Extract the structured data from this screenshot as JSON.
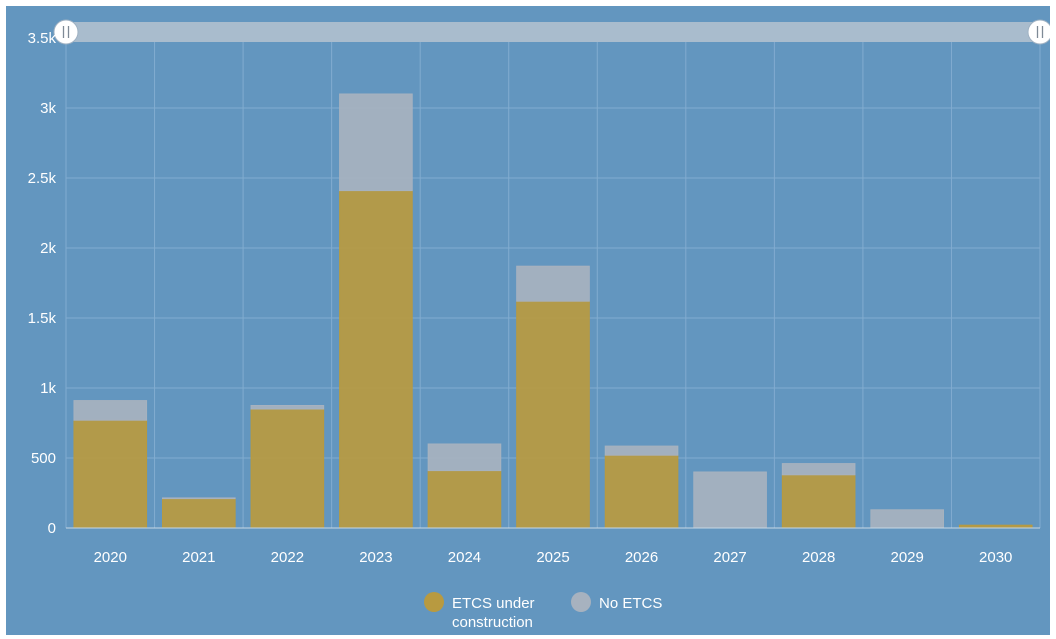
{
  "chart_data": {
    "type": "bar",
    "stacked": true,
    "categories": [
      "2020",
      "2021",
      "2022",
      "2023",
      "2024",
      "2025",
      "2026",
      "2027",
      "2028",
      "2029",
      "2030"
    ],
    "series": [
      {
        "name": "ETCS under construction",
        "color": "#b89a40",
        "values": [
          770,
          210,
          850,
          2410,
          410,
          1620,
          520,
          0,
          380,
          0,
          20
        ]
      },
      {
        "name": "No ETCS",
        "color": "#a7b2bf",
        "values": [
          140,
          5,
          25,
          690,
          190,
          250,
          65,
          400,
          80,
          130,
          0
        ]
      }
    ],
    "ylim": [
      0,
      3500
    ],
    "yticks": [
      0,
      500,
      1000,
      1500,
      2000,
      2500,
      3000,
      3500
    ],
    "ytick_labels": [
      "0",
      "500",
      "1k",
      "1.5k",
      "2k",
      "2.5k",
      "3k",
      "3.5k"
    ],
    "legend": {
      "position": "bottom-center",
      "items": [
        {
          "lines": [
            "ETCS under",
            "construction"
          ],
          "color": "#b89a40"
        },
        {
          "lines": [
            "No ETCS"
          ],
          "color": "#a7b2bf"
        }
      ]
    },
    "range_selector": {
      "visible": true,
      "start": 0,
      "end": 1
    },
    "grid": true,
    "background_color": "#6396bf"
  }
}
